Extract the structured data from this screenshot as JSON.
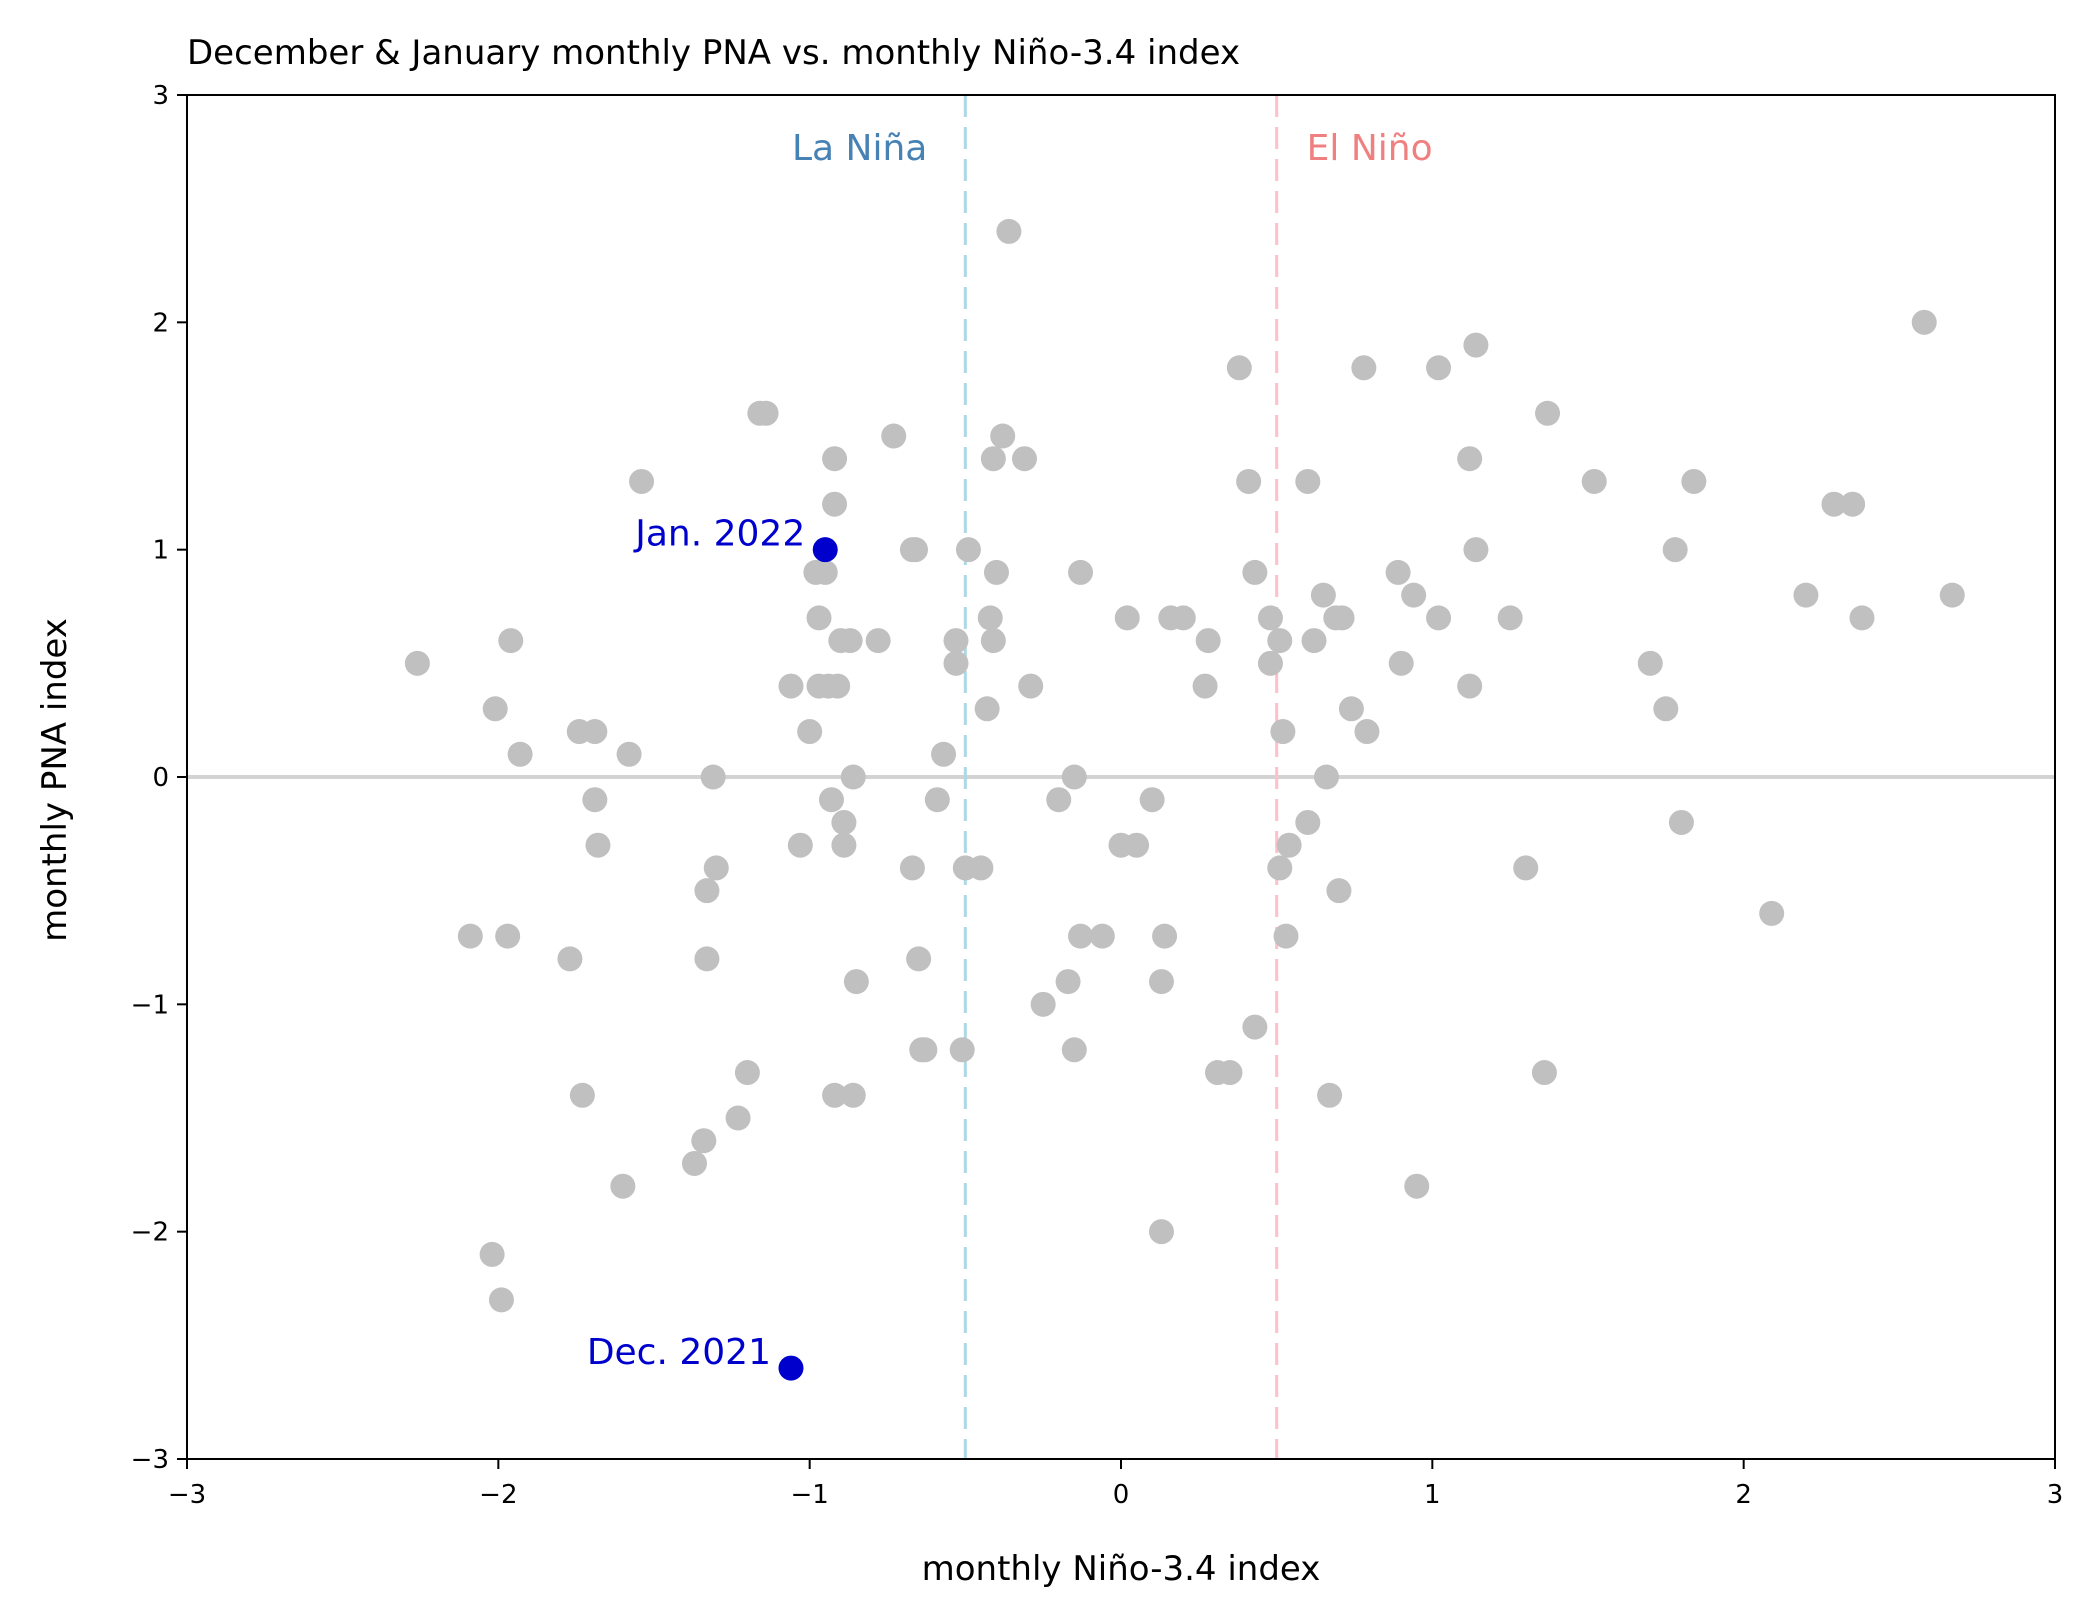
{
  "chart_data": {
    "type": "scatter",
    "title": "December & January monthly PNA vs. monthly Niño-3.4 index",
    "xlabel": "monthly Niño-3.4 index",
    "ylabel": "monthly PNA index",
    "xlim": [
      -3,
      3
    ],
    "ylim": [
      -3,
      3
    ],
    "xticks": [
      -3,
      -2,
      -1,
      0,
      1,
      2,
      3
    ],
    "yticks": [
      -3,
      -2,
      -1,
      0,
      1,
      2,
      3
    ],
    "grid": false,
    "zero_line": {
      "y": 0,
      "color": "#d3d3d3"
    },
    "thresholds": [
      {
        "x": -0.5,
        "label": "La Niña",
        "line_color": "#add8e6",
        "label_color": "#4682b4",
        "label_side": "left"
      },
      {
        "x": 0.5,
        "label": "El Niño",
        "line_color": "#ffc0cb",
        "label_color": "#f08080",
        "label_side": "right"
      }
    ],
    "point_color": "#c0c0c0",
    "highlight_color": "#0000cd",
    "points": [
      [
        -2.26,
        0.5
      ],
      [
        -2.09,
        -0.7
      ],
      [
        -2.02,
        -2.1
      ],
      [
        -2.01,
        0.3
      ],
      [
        -1.99,
        -2.3
      ],
      [
        -1.97,
        -0.7
      ],
      [
        -1.96,
        0.6
      ],
      [
        -1.93,
        0.1
      ],
      [
        -1.77,
        -0.8
      ],
      [
        -1.74,
        0.2
      ],
      [
        -1.73,
        -1.4
      ],
      [
        -1.69,
        0.2
      ],
      [
        -1.69,
        -0.1
      ],
      [
        -1.68,
        -0.3
      ],
      [
        -1.6,
        -1.8
      ],
      [
        -1.58,
        0.1
      ],
      [
        -1.54,
        1.3
      ],
      [
        -1.37,
        -1.7
      ],
      [
        -1.34,
        -1.6
      ],
      [
        -1.33,
        -0.5
      ],
      [
        -1.33,
        -0.8
      ],
      [
        -1.31,
        0.0
      ],
      [
        -1.3,
        -0.4
      ],
      [
        -1.23,
        -1.5
      ],
      [
        -1.2,
        -1.3
      ],
      [
        -1.16,
        1.6
      ],
      [
        -1.14,
        1.6
      ],
      [
        -1.06,
        0.4
      ],
      [
        -1.03,
        -0.3
      ],
      [
        -1.0,
        0.2
      ],
      [
        -0.98,
        0.9
      ],
      [
        -0.97,
        0.4
      ],
      [
        -0.97,
        0.7
      ],
      [
        -0.95,
        0.9
      ],
      [
        -0.94,
        0.4
      ],
      [
        -0.93,
        -0.1
      ],
      [
        -0.92,
        1.4
      ],
      [
        -0.92,
        1.2
      ],
      [
        -0.92,
        -1.4
      ],
      [
        -0.91,
        0.4
      ],
      [
        -0.9,
        0.6
      ],
      [
        -0.89,
        -0.2
      ],
      [
        -0.89,
        -0.3
      ],
      [
        -0.87,
        0.6
      ],
      [
        -0.86,
        0.0
      ],
      [
        -0.86,
        -1.4
      ],
      [
        -0.85,
        -0.9
      ],
      [
        -0.78,
        0.6
      ],
      [
        -0.73,
        1.5
      ],
      [
        -0.67,
        -0.4
      ],
      [
        -0.67,
        1.0
      ],
      [
        -0.66,
        1.0
      ],
      [
        -0.65,
        -0.8
      ],
      [
        -0.64,
        -1.2
      ],
      [
        -0.63,
        -1.2
      ],
      [
        -0.59,
        -0.1
      ],
      [
        -0.57,
        0.1
      ],
      [
        -0.53,
        0.5
      ],
      [
        -0.53,
        0.6
      ],
      [
        -0.51,
        -1.2
      ],
      [
        -0.5,
        -0.4
      ],
      [
        -0.49,
        1.0
      ],
      [
        -0.45,
        -0.4
      ],
      [
        -0.43,
        0.3
      ],
      [
        -0.42,
        0.7
      ],
      [
        -0.41,
        0.6
      ],
      [
        -0.41,
        1.4
      ],
      [
        -0.4,
        0.9
      ],
      [
        -0.38,
        1.5
      ],
      [
        -0.36,
        2.4
      ],
      [
        -0.31,
        1.4
      ],
      [
        -0.29,
        0.4
      ],
      [
        -0.25,
        -1.0
      ],
      [
        -0.2,
        -0.1
      ],
      [
        -0.17,
        -0.9
      ],
      [
        -0.15,
        -1.2
      ],
      [
        -0.15,
        0.0
      ],
      [
        -0.13,
        -0.7
      ],
      [
        -0.13,
        0.9
      ],
      [
        -0.06,
        -0.7
      ],
      [
        0.0,
        -0.3
      ],
      [
        0.02,
        0.7
      ],
      [
        0.05,
        -0.3
      ],
      [
        0.1,
        -0.1
      ],
      [
        0.13,
        -0.9
      ],
      [
        0.13,
        -2.0
      ],
      [
        0.14,
        -0.7
      ],
      [
        0.16,
        0.7
      ],
      [
        0.2,
        0.7
      ],
      [
        0.27,
        0.4
      ],
      [
        0.28,
        0.6
      ],
      [
        0.31,
        -1.3
      ],
      [
        0.35,
        -1.3
      ],
      [
        0.38,
        1.8
      ],
      [
        0.41,
        1.3
      ],
      [
        0.43,
        0.9
      ],
      [
        0.43,
        -1.1
      ],
      [
        0.48,
        0.7
      ],
      [
        0.48,
        0.5
      ],
      [
        0.51,
        0.6
      ],
      [
        0.51,
        -0.4
      ],
      [
        0.52,
        0.2
      ],
      [
        0.53,
        -0.7
      ],
      [
        0.54,
        -0.3
      ],
      [
        0.6,
        -0.2
      ],
      [
        0.6,
        1.3
      ],
      [
        0.62,
        0.6
      ],
      [
        0.65,
        0.8
      ],
      [
        0.66,
        0.0
      ],
      [
        0.67,
        -1.4
      ],
      [
        0.69,
        0.7
      ],
      [
        0.7,
        -0.5
      ],
      [
        0.71,
        0.7
      ],
      [
        0.74,
        0.3
      ],
      [
        0.78,
        1.8
      ],
      [
        0.79,
        0.2
      ],
      [
        0.89,
        0.9
      ],
      [
        0.9,
        0.5
      ],
      [
        0.94,
        0.8
      ],
      [
        0.95,
        -1.8
      ],
      [
        1.02,
        0.7
      ],
      [
        1.02,
        1.8
      ],
      [
        1.12,
        0.4
      ],
      [
        1.12,
        1.4
      ],
      [
        1.14,
        1.0
      ],
      [
        1.14,
        1.9
      ],
      [
        1.25,
        0.7
      ],
      [
        1.3,
        -0.4
      ],
      [
        1.36,
        -1.3
      ],
      [
        1.37,
        1.6
      ],
      [
        1.52,
        1.3
      ],
      [
        1.7,
        0.5
      ],
      [
        1.75,
        0.3
      ],
      [
        1.78,
        1.0
      ],
      [
        1.8,
        -0.2
      ],
      [
        1.84,
        1.3
      ],
      [
        2.09,
        -0.6
      ],
      [
        2.2,
        0.8
      ],
      [
        2.29,
        1.2
      ],
      [
        2.35,
        1.2
      ],
      [
        2.38,
        0.7
      ],
      [
        2.58,
        2.0
      ],
      [
        2.67,
        0.8
      ]
    ],
    "highlighted_points": [
      {
        "x": -0.95,
        "y": 1.0,
        "label": "Jan. 2022"
      },
      {
        "x": -1.06,
        "y": -2.6,
        "label": "Dec. 2021"
      }
    ]
  }
}
